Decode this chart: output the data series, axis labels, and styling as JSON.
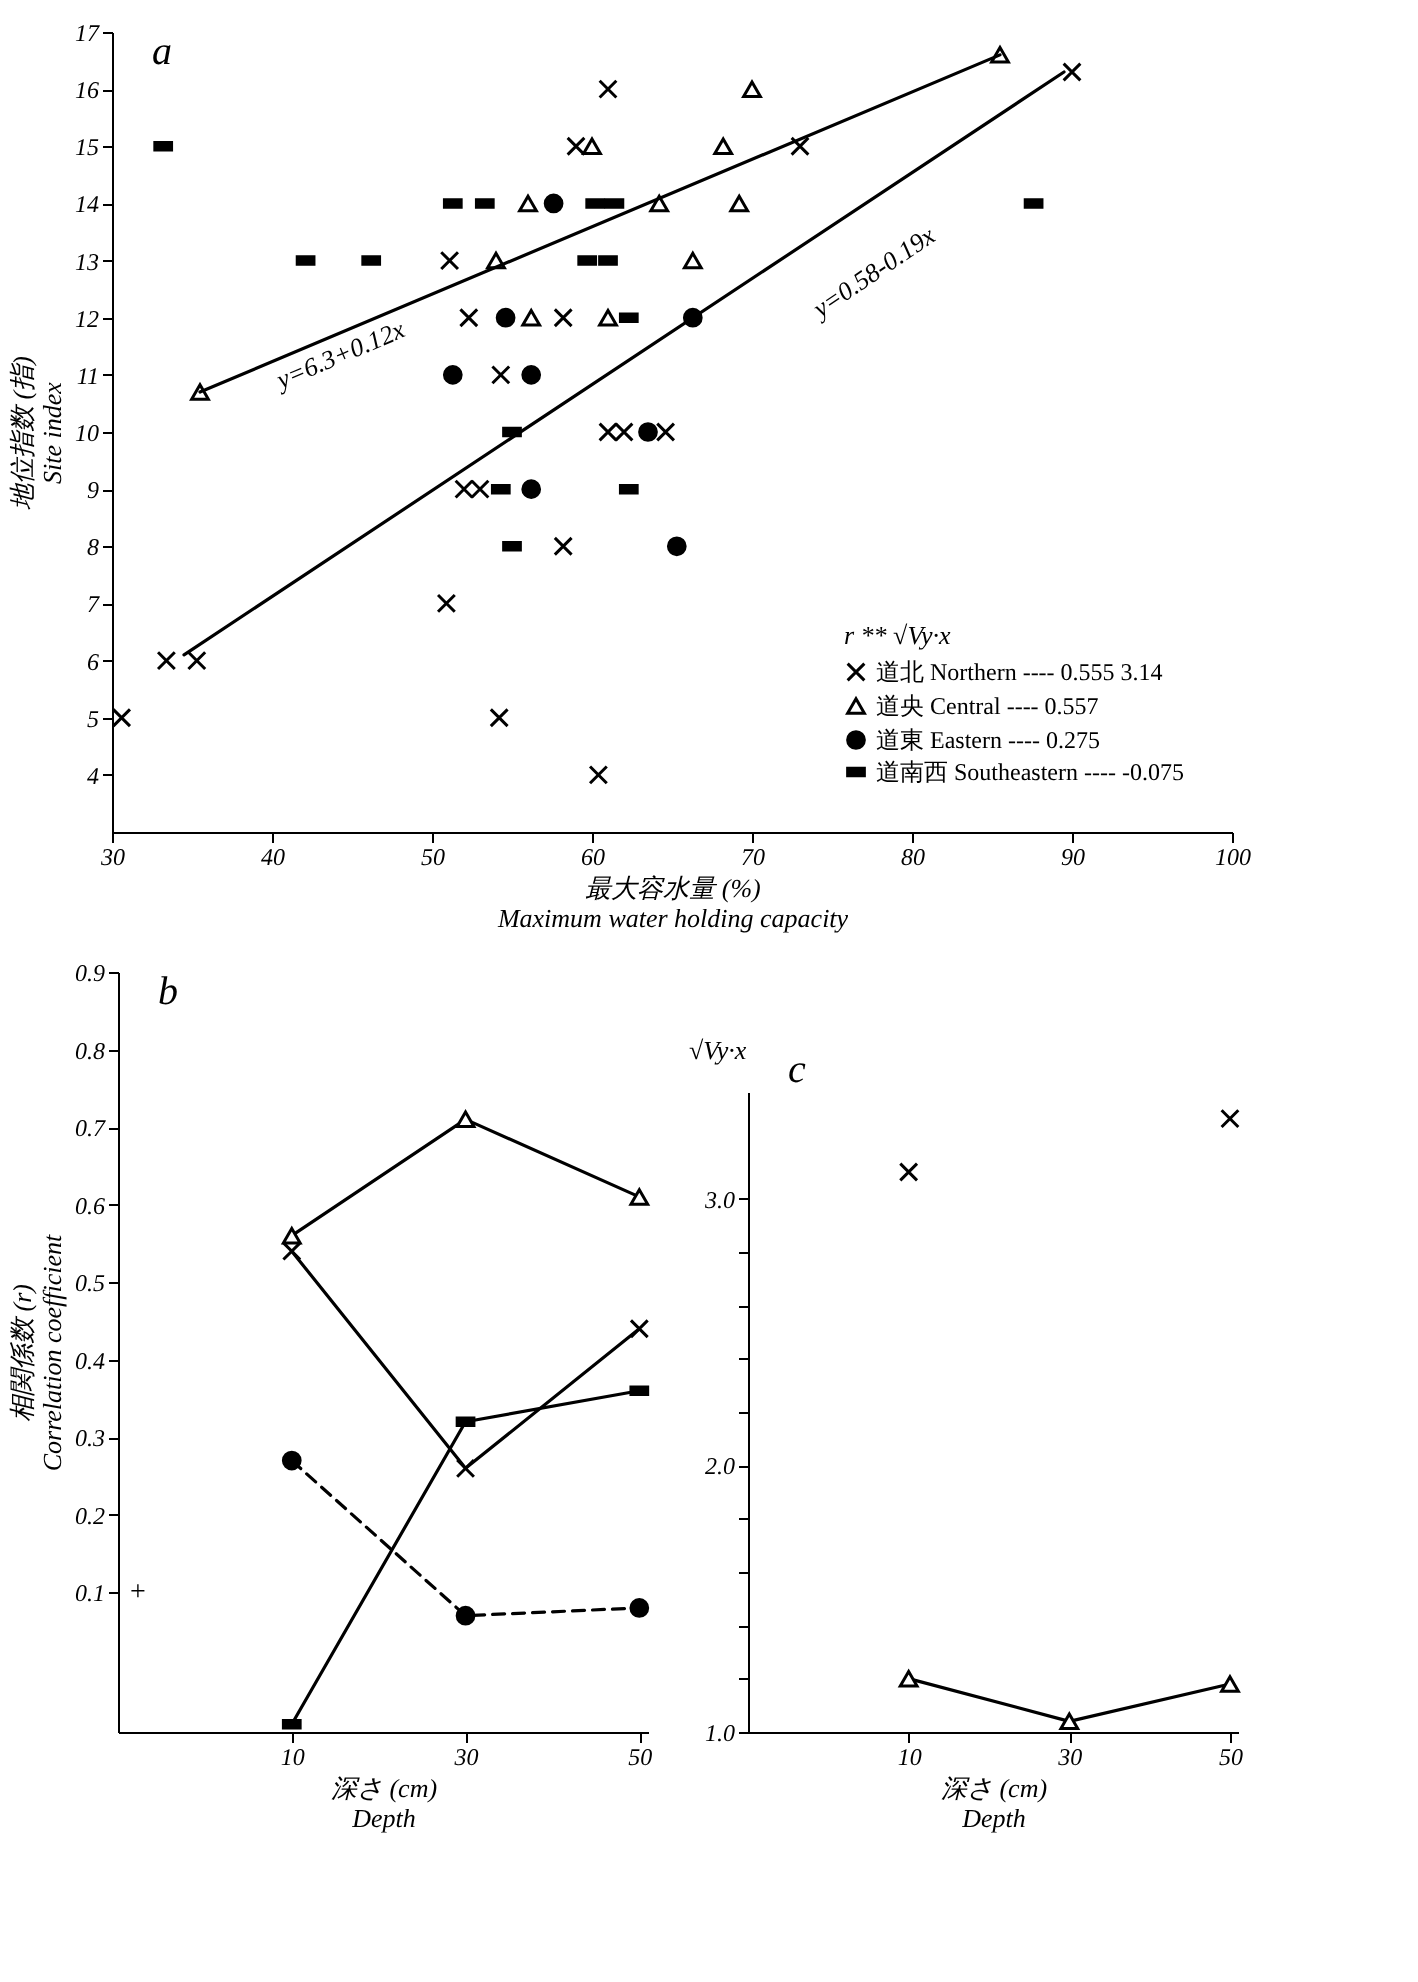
{
  "chart_data": [
    {
      "type": "scatter",
      "title": "a",
      "xlabel": "最大容水量 (%)\nMaximum water holding capacity",
      "ylabel": "地位指数 (指)\nSite index",
      "xlim": [
        30,
        100
      ],
      "ylim": [
        3,
        17
      ],
      "xticks": [
        30,
        40,
        50,
        60,
        70,
        80,
        90,
        100
      ],
      "yticks": [
        4,
        5,
        6,
        7,
        8,
        9,
        10,
        11,
        12,
        13,
        14,
        15,
        16,
        17
      ],
      "legend": "bottom right",
      "legend_title": "r  ** √Vy·x",
      "series": [
        {
          "name": "道北 Northern ---- 0.555   3.14",
          "color": "#000000",
          "marker": "cross",
          "x": [
            30.6,
            33.4,
            35.3,
            50.9,
            51.1,
            52,
            52.3,
            53,
            54.2,
            54.3,
            58.2,
            58.2,
            59,
            60.4,
            61,
            61,
            62,
            64.6,
            73,
            90
          ],
          "values": [
            5,
            6,
            6,
            7,
            13,
            9,
            12,
            9,
            5,
            11,
            12,
            8,
            15,
            4,
            16,
            10,
            10,
            10,
            15,
            16.3
          ]
        },
        {
          "name": "道央 Central ---- 0.557",
          "color": "#000000",
          "marker": "triangle",
          "x": [
            35.5,
            54,
            56,
            56.2,
            60,
            61,
            64.2,
            66.3,
            68.2,
            69.2,
            70,
            85.5
          ],
          "values": [
            10.7,
            13,
            14,
            12,
            15,
            12,
            14,
            13,
            15,
            14,
            16,
            16.6
          ]
        },
        {
          "name": "道東 Eastern ---- 0.275",
          "color": "#000000",
          "marker": "circle",
          "x": [
            51.3,
            54.6,
            56.2,
            56.2,
            57.6,
            63.5,
            65.3,
            66.3
          ],
          "values": [
            11,
            12,
            11,
            9,
            14,
            10,
            8,
            12
          ]
        },
        {
          "name": "道南西 Southeastern ---- -0.075",
          "color": "#000000",
          "marker": "square",
          "x": [
            33.2,
            42.1,
            46.2,
            51.3,
            53.3,
            54.3,
            55,
            55,
            59.7,
            60.2,
            61,
            61.4,
            62.3,
            62.3,
            87.6
          ],
          "values": [
            15,
            13,
            13,
            14,
            14,
            9,
            10,
            8,
            13,
            14,
            13,
            14,
            12,
            9,
            14
          ]
        },
        {
          "type": "line",
          "color": "#000000",
          "x": [
            35.5,
            85.5
          ],
          "values": [
            10.7,
            16.6
          ]
        },
        {
          "type": "line",
          "color": "#000000",
          "x": [
            34.5,
            89.5
          ],
          "values": [
            6.1,
            16.3
          ]
        }
      ],
      "annotations": [
        "y=6.3+0.12x",
        "y=0.58-0.19x"
      ]
    },
    {
      "type": "line",
      "title": "b",
      "xlabel": "深さ (cm)\nDepth",
      "ylabel": "相関係数 (r)\nCorrelation coefficient",
      "x": [
        10,
        30,
        50
      ],
      "xlim": [
        -10,
        51
      ],
      "ylim": [
        -0.08,
        0.9
      ],
      "xticks": [
        10,
        30,
        50
      ],
      "yticks": [
        0.1,
        0.2,
        0.3,
        0.4,
        0.5,
        0.6,
        0.7,
        0.8,
        0.9
      ],
      "series": [
        {
          "color": "#000000",
          "marker": "triangle",
          "line_style": "solid",
          "values": [
            0.56,
            0.71,
            0.61
          ]
        },
        {
          "color": "#000000",
          "marker": "cross",
          "line_style": "solid",
          "values": [
            0.54,
            0.26,
            0.44
          ]
        },
        {
          "color": "#000000",
          "marker": "square",
          "line_style": "solid",
          "values": [
            -0.07,
            0.32,
            0.36
          ]
        },
        {
          "color": "#000000",
          "marker": "circle",
          "line_style": "dashed",
          "values": [
            0.27,
            0.07,
            0.08
          ]
        }
      ],
      "annotations": [
        "+"
      ]
    },
    {
      "type": "line",
      "title": "c",
      "xlabel": "深さ (cm)\nDepth",
      "ylabel": "√Vy·x",
      "x": [
        10,
        30,
        50
      ],
      "xlim": [
        -10,
        51
      ],
      "ylim": [
        1,
        3.4
      ],
      "xticks": [
        10,
        30,
        50
      ],
      "yticks": [
        {
          "value": 1,
          "label": "1.0"
        },
        {
          "value": 1.2,
          "label": null
        },
        {
          "value": 1.4,
          "label": null
        },
        {
          "value": 1.6,
          "label": null
        },
        {
          "value": 1.8,
          "label": null
        },
        {
          "value": 2,
          "label": "2.0"
        },
        {
          "value": 2.2,
          "label": null
        },
        {
          "value": 2.4,
          "label": null
        },
        {
          "value": 2.6,
          "label": null
        },
        {
          "value": 2.8,
          "label": null
        },
        {
          "value": 3,
          "label": "3.0"
        }
      ],
      "series": [
        {
          "color": "#000000",
          "marker": "triangle",
          "line_style": "solid",
          "values": [
            1.2,
            1.04,
            1.18
          ]
        },
        {
          "type": "scatter",
          "color": "#000000",
          "marker": "cross",
          "x": [
            10,
            50
          ],
          "values": [
            3.1,
            3.3
          ]
        }
      ]
    }
  ]
}
